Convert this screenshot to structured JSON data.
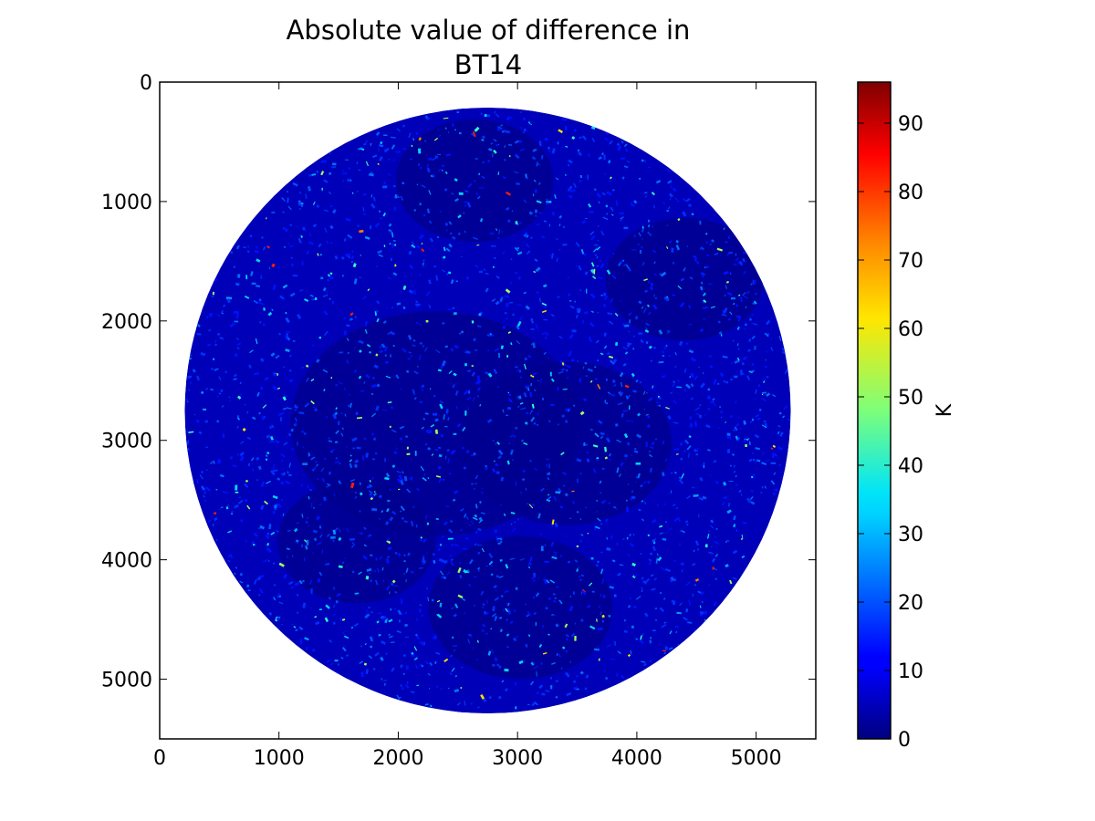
{
  "chart_data": {
    "type": "heatmap",
    "title_lines": [
      "Absolute value of difference in",
      "BT14"
    ],
    "xlabel": "",
    "ylabel": "",
    "xlim": [
      0,
      5500
    ],
    "ylim": [
      5500,
      0
    ],
    "y_inverted": true,
    "x_ticks": [
      "0",
      "1000",
      "2000",
      "3000",
      "4000",
      "5000"
    ],
    "y_ticks": [
      "0",
      "1000",
      "2000",
      "3000",
      "4000",
      "5000"
    ],
    "x_tick_values": [
      0,
      1000,
      2000,
      3000,
      4000,
      5000
    ],
    "y_tick_values": [
      0,
      1000,
      2000,
      3000,
      4000,
      5000
    ],
    "colormap": "jet",
    "colorbar": {
      "label": "K",
      "range": [
        0,
        96
      ],
      "ticks": [
        "0",
        "10",
        "20",
        "30",
        "40",
        "50",
        "60",
        "70",
        "80",
        "90"
      ],
      "tick_values": [
        0,
        10,
        20,
        30,
        40,
        50,
        60,
        70,
        80,
        90
      ]
    },
    "disk": {
      "center_x": 2750,
      "center_y": 2750,
      "radius": 2540
    },
    "grid": false,
    "background_value_color": "#ffffff"
  }
}
